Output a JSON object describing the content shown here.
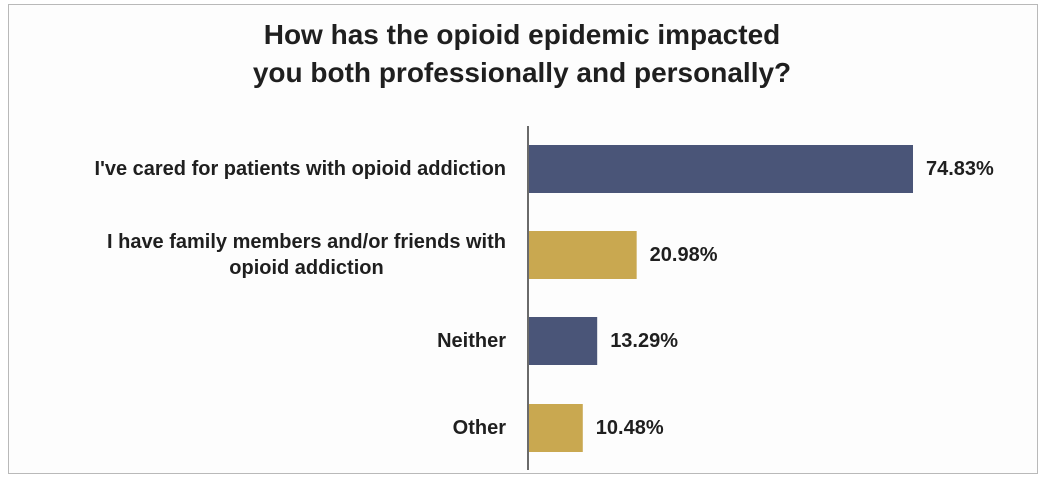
{
  "chart_data": {
    "type": "bar",
    "orientation": "horizontal",
    "title": "How has the opioid epidemic impacted you both professionally and personally?",
    "title_lines": [
      "How has the opioid epidemic impacted",
      "you both professionally and personally?"
    ],
    "categories": [
      "I've cared for patients with opioid addiction",
      "I have family members and/or friends with opioid addiction",
      "Neither",
      "Other"
    ],
    "category_lines": [
      [
        "I've cared for patients with opioid addiction"
      ],
      [
        "I have family members and/or friends with",
        "opioid addiction"
      ],
      [
        "Neither"
      ],
      [
        "Other"
      ]
    ],
    "values": [
      74.83,
      20.98,
      13.29,
      10.48
    ],
    "value_labels": [
      "74.83%",
      "20.98%",
      "13.29%",
      "10.48%"
    ],
    "colors": [
      "#4a5578",
      "#c9a850",
      "#4a5578",
      "#c9a850"
    ],
    "xlim": [
      0,
      74.83
    ],
    "grid": false,
    "legend": "none"
  }
}
